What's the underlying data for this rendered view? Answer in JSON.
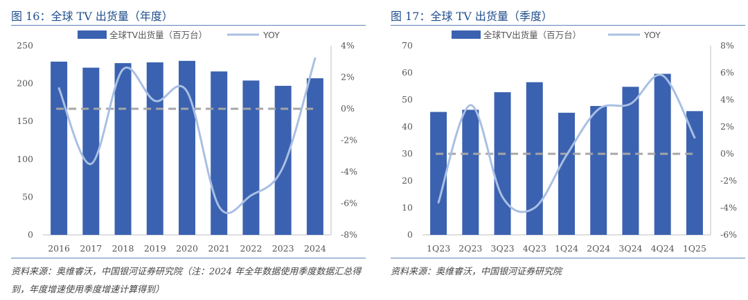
{
  "chart_data": [
    {
      "type": "bar",
      "title": "图 16：全球 TV 出货量（年度）",
      "categories": [
        "2016",
        "2017",
        "2018",
        "2019",
        "2020",
        "2021",
        "2022",
        "2023",
        "2024"
      ],
      "series": [
        {
          "name": "全球TV出货量（百万台）",
          "type": "bar",
          "axis": "left",
          "values": [
            229,
            221,
            227,
            228,
            230,
            216,
            204,
            197,
            207
          ]
        },
        {
          "name": "YOY",
          "type": "line",
          "axis": "right",
          "values": [
            1.3,
            -3.5,
            2.5,
            0.5,
            1.1,
            -6.2,
            -5.5,
            -3.7,
            3.2
          ]
        }
      ],
      "ylim_left": [
        0,
        250
      ],
      "yticks_left": [
        0,
        50,
        100,
        150,
        200,
        250
      ],
      "ylim_right": [
        -8,
        4
      ],
      "yticks_right": [
        -8,
        -6,
        -4,
        -2,
        0,
        2,
        4
      ],
      "yticks_right_labels": [
        "-8%",
        "-6%",
        "-4%",
        "-2%",
        "0%",
        "2%",
        "4%"
      ],
      "zero_line": 0,
      "legend_position": "top",
      "source": "资料来源：奥维睿沃，中国银河证券研究院（注：2024 年全年数据使用季度数据汇总得到，年度增速使用季度增速计算得到）",
      "colors": {
        "bar": "#3b62b0",
        "line": "#a9bfe3",
        "zero": "#a6a6a6"
      }
    },
    {
      "type": "bar",
      "title": "图 17：全球 TV 出货量（季度）",
      "categories": [
        "1Q23",
        "2Q23",
        "3Q23",
        "4Q23",
        "1Q24",
        "2Q24",
        "3Q24",
        "4Q24",
        "1Q25"
      ],
      "series": [
        {
          "name": "全球TV出货量（百万台）",
          "type": "bar",
          "axis": "left",
          "values": [
            45.5,
            46.3,
            52.8,
            56.5,
            45.2,
            47.7,
            54.8,
            59.6,
            45.8
          ]
        },
        {
          "name": "YOY",
          "type": "line",
          "axis": "right",
          "values": [
            -3.6,
            3.6,
            -3.2,
            -4.0,
            -0.1,
            3.3,
            3.7,
            5.8,
            1.2
          ]
        }
      ],
      "ylim_left": [
        0,
        70
      ],
      "yticks_left": [
        0,
        10,
        20,
        30,
        40,
        50,
        60,
        70
      ],
      "ylim_right": [
        -6,
        8
      ],
      "yticks_right": [
        -6,
        -4,
        -2,
        0,
        2,
        4,
        6,
        8
      ],
      "yticks_right_labels": [
        "-6%",
        "-4%",
        "-2%",
        "0%",
        "2%",
        "4%",
        "6%",
        "8%"
      ],
      "zero_line": 0,
      "legend_position": "top",
      "source": "资料来源：奥维睿沃，中国银河证券研究院",
      "colors": {
        "bar": "#3b62b0",
        "line": "#a9bfe3",
        "zero": "#a6a6a6"
      }
    }
  ]
}
